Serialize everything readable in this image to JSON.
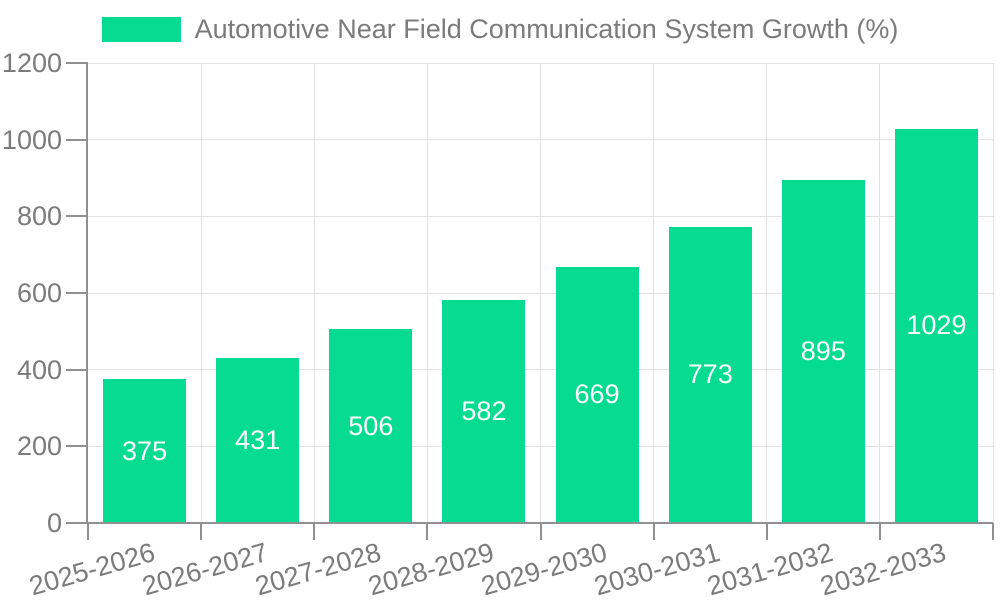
{
  "chart_data": {
    "type": "bar",
    "title": "Automotive Near Field Communication System Growth (%)",
    "categories": [
      "2025-2026",
      "2026-2027",
      "2027-2028",
      "2028-2029",
      "2029-2030",
      "2030-2031",
      "2031-2032",
      "2032-2033"
    ],
    "values": [
      375,
      431,
      506,
      582,
      669,
      773,
      895,
      1029
    ],
    "xlabel": "",
    "ylabel": "",
    "ylim": [
      0,
      1200
    ],
    "y_ticks": [
      0,
      200,
      400,
      600,
      800,
      1000,
      1200
    ],
    "grid": true,
    "legend_position": "top-center",
    "bar_label_position": "inside-center"
  },
  "colors": {
    "bar": "#06DB92",
    "bar_label": "#FFFFFF",
    "grid": "#E2E2E2",
    "axis": "#909090",
    "tick_label": "#7B7B7B",
    "legend_text": "#7B7B7B",
    "background": "#FFFFFF"
  }
}
